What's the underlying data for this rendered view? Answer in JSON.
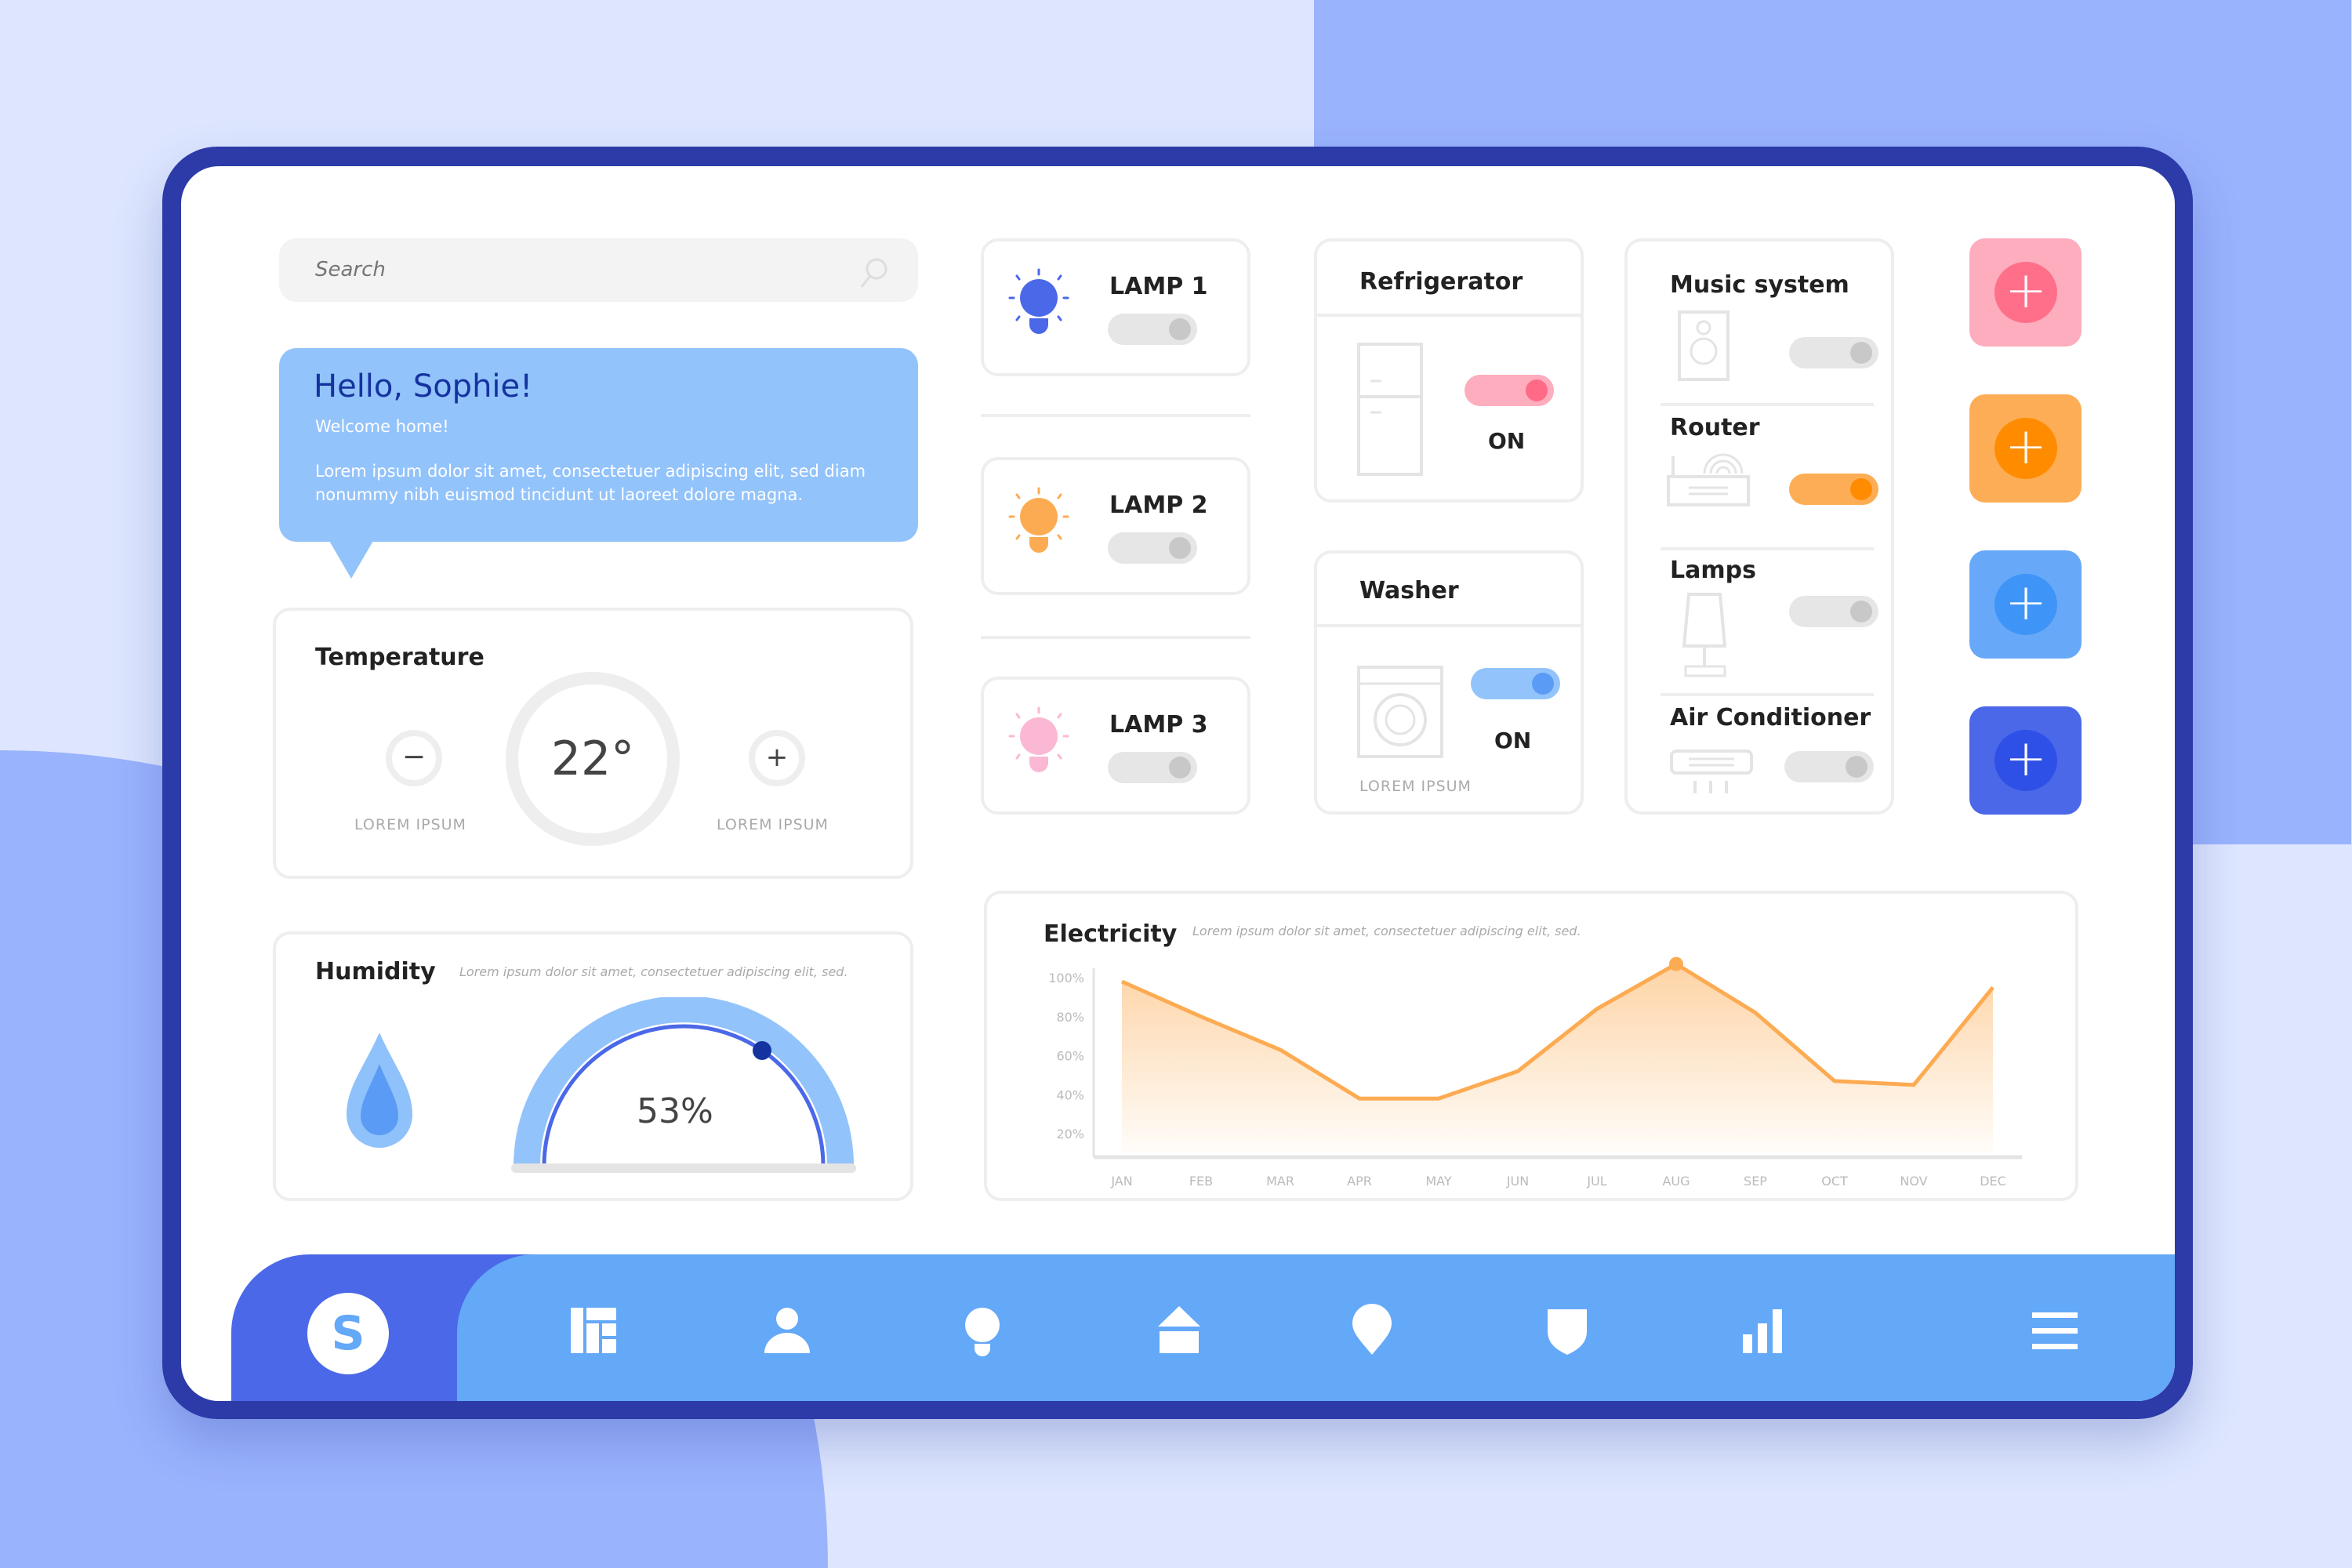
{
  "search": {
    "placeholder": "Search",
    "icon": "search-icon"
  },
  "greeting": {
    "title": "Hello, Sophie!",
    "subtitle": "Welcome home!",
    "body": "Lorem ipsum dolor sit amet, consectetuer adipiscing elit, sed diam nonummy nibh euismod tincidunt ut laoreet dolore magna."
  },
  "temperature": {
    "title": "Temperature",
    "value": "22°",
    "minus_label": "LOREM IPSUM",
    "plus_label": "LOREM IPSUM"
  },
  "humidity": {
    "title": "Humidity",
    "description": "Lorem ipsum dolor sit amet, consectetuer adipiscing elit, sed.",
    "value": "53%",
    "percent": 53
  },
  "lamps": [
    {
      "label": "LAMP 1",
      "color": "#4a68e8",
      "on": false
    },
    {
      "label": "LAMP 2",
      "color": "#fdab52",
      "on": false
    },
    {
      "label": "LAMP 3",
      "color": "#fbb8d4",
      "on": false
    }
  ],
  "refrigerator": {
    "title": "Refrigerator",
    "status": "ON",
    "on": true,
    "color": "#ff6b86"
  },
  "washer": {
    "title": "Washer",
    "status": "ON",
    "caption": "LOREM IPSUM",
    "on": true,
    "color": "#5a9cf5"
  },
  "devices": [
    {
      "label": "Music system",
      "on": false
    },
    {
      "label": "Router",
      "on": true,
      "color": "#ff8c00"
    },
    {
      "label": "Lamps",
      "on": false
    },
    {
      "label": "Air Conditioner",
      "on": false
    }
  ],
  "add_buttons": [
    {
      "bg": "#fdadbd",
      "fg": "#ff6f8a"
    },
    {
      "bg": "#fdad55",
      "fg": "#ff8c00"
    },
    {
      "bg": "#67a9f8",
      "fg": "#3f94f7"
    },
    {
      "bg": "#4a68e8",
      "fg": "#2f50e6"
    }
  ],
  "electricity": {
    "title": "Electricity",
    "description": "Lorem ipsum dolor sit amet, consectetuer adipiscing elit, sed."
  },
  "chart_data": {
    "type": "area",
    "categories": [
      "JAN",
      "FEB",
      "MAR",
      "APR",
      "MAY",
      "JUN",
      "JUL",
      "AUG",
      "SEP",
      "OCT",
      "NOV",
      "DEC"
    ],
    "values": [
      98,
      80,
      63,
      38,
      38,
      52,
      84,
      107,
      82,
      47,
      45,
      95
    ],
    "yticks": [
      "100%",
      "80%",
      "60%",
      "40%",
      "20%"
    ],
    "ytick_values": [
      100,
      80,
      60,
      40,
      20
    ],
    "highlight": "AUG",
    "color": "#fdab52"
  },
  "nav": {
    "avatar": "S",
    "items": [
      "dashboard-icon",
      "user-icon",
      "bulb-icon",
      "home-icon",
      "location-icon",
      "shield-icon",
      "stats-icon",
      "menu-icon"
    ]
  }
}
